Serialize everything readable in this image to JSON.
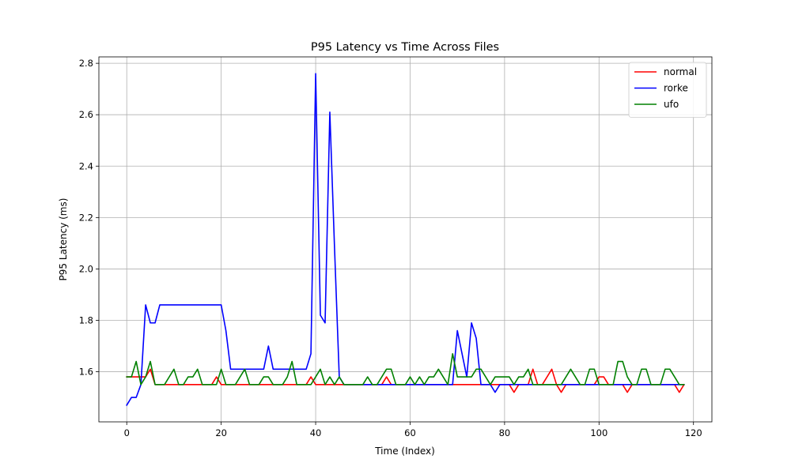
{
  "chart_data": {
    "type": "line",
    "title": "P95 Latency vs Time Across Files",
    "xlabel": "Time (Index)",
    "ylabel": "P95 Latency (ms)",
    "xlim": [
      -5.9,
      123.9
    ],
    "ylim": [
      1.405,
      2.825
    ],
    "xticks": [
      0,
      20,
      40,
      60,
      80,
      100,
      120
    ],
    "xtick_labels": [
      "0",
      "20",
      "40",
      "60",
      "80",
      "100",
      "120"
    ],
    "yticks": [
      1.6,
      1.8,
      2.0,
      2.2,
      2.4,
      2.6,
      2.8
    ],
    "ytick_labels": [
      "1.6",
      "1.8",
      "2.0",
      "2.2",
      "2.4",
      "2.6",
      "2.8"
    ],
    "grid": true,
    "legend_position": "top-right",
    "series": [
      {
        "name": "normal",
        "color": "#ff0000",
        "values": [
          1.58,
          1.58,
          1.58,
          1.58,
          1.58,
          1.61,
          1.55,
          1.55,
          1.55,
          1.55,
          1.55,
          1.55,
          1.55,
          1.55,
          1.55,
          1.55,
          1.55,
          1.55,
          1.55,
          1.58,
          1.55,
          1.55,
          1.55,
          1.55,
          1.55,
          1.55,
          1.55,
          1.55,
          1.55,
          1.55,
          1.55,
          1.55,
          1.55,
          1.55,
          1.55,
          1.55,
          1.55,
          1.55,
          1.55,
          1.58,
          1.55,
          1.55,
          1.55,
          1.55,
          1.55,
          1.55,
          1.55,
          1.55,
          1.55,
          1.55,
          1.55,
          1.55,
          1.55,
          1.55,
          1.55,
          1.58,
          1.55,
          1.55,
          1.55,
          1.55,
          1.55,
          1.55,
          1.55,
          1.55,
          1.55,
          1.55,
          1.55,
          1.55,
          1.55,
          1.55,
          1.55,
          1.55,
          1.55,
          1.55,
          1.55,
          1.55,
          1.55,
          1.55,
          1.55,
          1.55,
          1.55,
          1.55,
          1.52,
          1.55,
          1.55,
          1.55,
          1.61,
          1.55,
          1.55,
          1.58,
          1.61,
          1.55,
          1.52,
          1.55,
          1.55,
          1.55,
          1.55,
          1.55,
          1.55,
          1.55,
          1.58,
          1.58,
          1.55,
          1.55,
          1.55,
          1.55,
          1.52,
          1.55,
          1.55,
          1.55,
          1.55,
          1.55,
          1.55,
          1.55,
          1.55,
          1.55,
          1.55,
          1.52,
          1.55
        ]
      },
      {
        "name": "rorke",
        "color": "#0000ff",
        "values": [
          1.47,
          1.5,
          1.5,
          1.55,
          1.86,
          1.79,
          1.79,
          1.86,
          1.86,
          1.86,
          1.86,
          1.86,
          1.86,
          1.86,
          1.86,
          1.86,
          1.86,
          1.86,
          1.86,
          1.86,
          1.86,
          1.76,
          1.61,
          1.61,
          1.61,
          1.61,
          1.61,
          1.61,
          1.61,
          1.61,
          1.7,
          1.61,
          1.61,
          1.61,
          1.61,
          1.61,
          1.61,
          1.61,
          1.61,
          1.67,
          2.76,
          1.82,
          1.79,
          2.61,
          2.08,
          1.58,
          1.55,
          1.55,
          1.55,
          1.55,
          1.55,
          1.55,
          1.55,
          1.55,
          1.55,
          1.55,
          1.55,
          1.55,
          1.55,
          1.55,
          1.55,
          1.55,
          1.55,
          1.55,
          1.55,
          1.55,
          1.55,
          1.55,
          1.55,
          1.55,
          1.76,
          1.67,
          1.58,
          1.79,
          1.73,
          1.55,
          1.55,
          1.55,
          1.52,
          1.55,
          1.55,
          1.55,
          1.55,
          1.55,
          1.55,
          1.55,
          1.55,
          1.55,
          1.55,
          1.55,
          1.55,
          1.55,
          1.55,
          1.55,
          1.55,
          1.55,
          1.55,
          1.55,
          1.55,
          1.55,
          1.55,
          1.55,
          1.55,
          1.55,
          1.55,
          1.55,
          1.55,
          1.55,
          1.55,
          1.55,
          1.55,
          1.55,
          1.55,
          1.55,
          1.55,
          1.55,
          1.55,
          1.55,
          1.55
        ]
      },
      {
        "name": "ufo",
        "color": "#008000",
        "values": [
          1.58,
          1.58,
          1.64,
          1.55,
          1.58,
          1.64,
          1.55,
          1.55,
          1.55,
          1.58,
          1.61,
          1.55,
          1.55,
          1.58,
          1.58,
          1.61,
          1.55,
          1.55,
          1.55,
          1.55,
          1.61,
          1.55,
          1.55,
          1.55,
          1.58,
          1.61,
          1.55,
          1.55,
          1.55,
          1.58,
          1.58,
          1.55,
          1.55,
          1.55,
          1.58,
          1.64,
          1.55,
          1.55,
          1.55,
          1.55,
          1.58,
          1.61,
          1.55,
          1.58,
          1.55,
          1.58,
          1.55,
          1.55,
          1.55,
          1.55,
          1.55,
          1.58,
          1.55,
          1.55,
          1.58,
          1.61,
          1.61,
          1.55,
          1.55,
          1.55,
          1.58,
          1.55,
          1.58,
          1.55,
          1.58,
          1.58,
          1.61,
          1.58,
          1.55,
          1.67,
          1.58,
          1.58,
          1.58,
          1.58,
          1.61,
          1.61,
          1.58,
          1.55,
          1.58,
          1.58,
          1.58,
          1.58,
          1.55,
          1.58,
          1.58,
          1.61,
          1.55,
          1.55,
          1.55,
          1.55,
          1.55,
          1.55,
          1.55,
          1.58,
          1.61,
          1.58,
          1.55,
          1.55,
          1.61,
          1.61,
          1.55,
          1.55,
          1.55,
          1.55,
          1.64,
          1.64,
          1.58,
          1.55,
          1.55,
          1.61,
          1.61,
          1.55,
          1.55,
          1.55,
          1.61,
          1.61,
          1.58,
          1.55,
          1.55
        ]
      }
    ]
  }
}
